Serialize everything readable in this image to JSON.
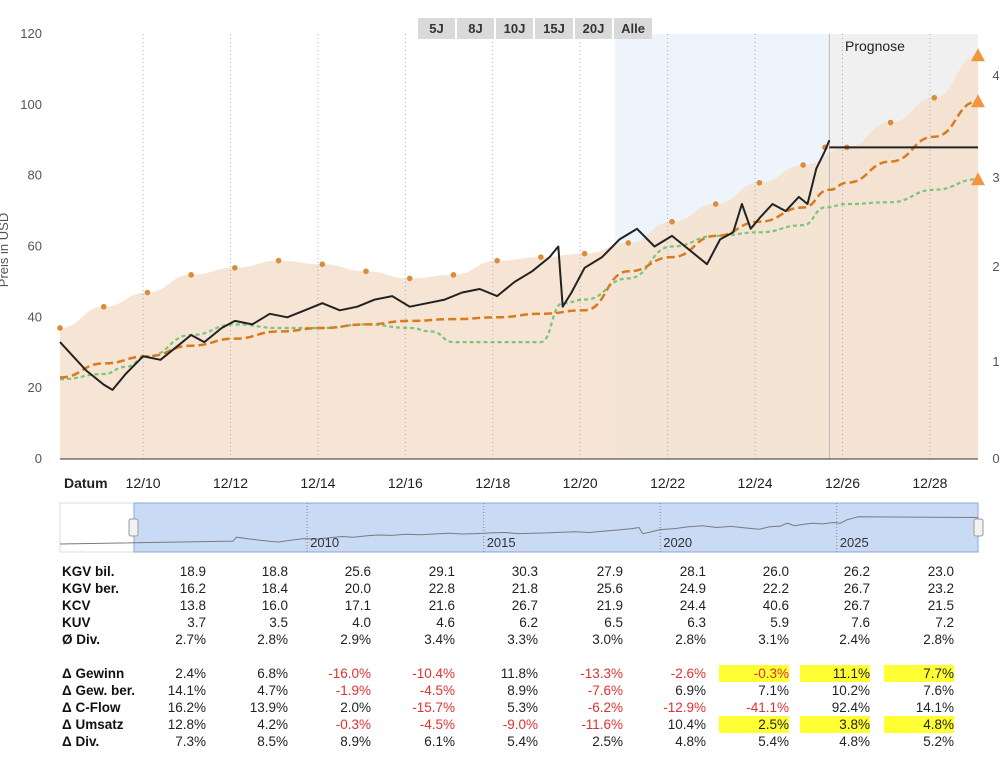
{
  "range_buttons": [
    "5J",
    "8J",
    "10J",
    "15J",
    "20J",
    "Alle"
  ],
  "chart_data": {
    "type": "line",
    "ylabel": "Preis in USD",
    "xlabel": "Datum",
    "ylim": [
      0,
      120
    ],
    "yticks": [
      0,
      20,
      40,
      60,
      80,
      100,
      120
    ],
    "y2_ticks_visible": [
      "4",
      "3",
      "2",
      "1",
      "0"
    ],
    "x_tick_labels": [
      "12/10",
      "12/12",
      "12/14",
      "12/16",
      "12/18",
      "12/20",
      "12/22",
      "12/24",
      "12/26",
      "12/28"
    ],
    "forecast_label": "Prognose",
    "colors": {
      "price": "#222222",
      "fair_value_band": "#f5e0cc",
      "fair_value_points": "#d98c3a",
      "earnings_line": "#d97a1f",
      "cashflow_line": "#7cc47c",
      "forecast_bg": "#f0f0f0",
      "recent_bg": "#eef4fb"
    },
    "series": [
      {
        "key": "band",
        "points": [
          [
            2008.0,
            37
          ],
          [
            2009.0,
            43
          ],
          [
            2010.0,
            47
          ],
          [
            2011.0,
            52
          ],
          [
            2012.0,
            54
          ],
          [
            2013.0,
            56
          ],
          [
            2014.0,
            55
          ],
          [
            2015.0,
            53
          ],
          [
            2016.0,
            51
          ],
          [
            2017.0,
            52
          ],
          [
            2018.0,
            56
          ],
          [
            2019.0,
            57
          ],
          [
            2020.0,
            58
          ],
          [
            2021.0,
            61
          ],
          [
            2022.0,
            67
          ],
          [
            2023.0,
            72
          ],
          [
            2024.0,
            78
          ],
          [
            2025.0,
            83
          ],
          [
            2026.0,
            88
          ],
          [
            2027.0,
            95
          ],
          [
            2028.0,
            102
          ],
          [
            2029.0,
            114
          ]
        ]
      },
      {
        "key": "earnings",
        "points": [
          [
            2008.0,
            23
          ],
          [
            2009.0,
            27
          ],
          [
            2010.0,
            29
          ],
          [
            2011.0,
            32
          ],
          [
            2012.0,
            34
          ],
          [
            2013.0,
            36
          ],
          [
            2014.0,
            37
          ],
          [
            2015.0,
            38
          ],
          [
            2016.0,
            39
          ],
          [
            2017.0,
            39.5
          ],
          [
            2018.0,
            40
          ],
          [
            2019.0,
            41
          ],
          [
            2020.0,
            42
          ],
          [
            2021.0,
            53
          ],
          [
            2022.0,
            57
          ],
          [
            2023.0,
            63
          ],
          [
            2024.0,
            67
          ],
          [
            2025.0,
            71
          ],
          [
            2025.6,
            76
          ],
          [
            2026.0,
            78
          ],
          [
            2027.0,
            84
          ],
          [
            2028.0,
            91
          ],
          [
            2029.0,
            101
          ]
        ]
      },
      {
        "key": "cashflow",
        "points": [
          [
            2008.0,
            22.5
          ],
          [
            2009.0,
            24
          ],
          [
            2009.5,
            26
          ],
          [
            2010.0,
            29
          ],
          [
            2011.0,
            35
          ],
          [
            2012.0,
            38
          ],
          [
            2013.0,
            37
          ],
          [
            2014.0,
            37
          ],
          [
            2015.0,
            38
          ],
          [
            2016.0,
            37
          ],
          [
            2016.5,
            36
          ],
          [
            2017.0,
            33
          ],
          [
            2018.0,
            33
          ],
          [
            2019.0,
            33
          ],
          [
            2019.5,
            44
          ],
          [
            2020.0,
            45
          ],
          [
            2021.0,
            51
          ],
          [
            2022.0,
            60
          ],
          [
            2023.0,
            63
          ],
          [
            2024.0,
            64
          ],
          [
            2025.0,
            66
          ],
          [
            2025.5,
            71
          ],
          [
            2026.0,
            72
          ],
          [
            2027.0,
            72.5
          ],
          [
            2028.0,
            76
          ],
          [
            2029.0,
            79
          ]
        ]
      },
      {
        "key": "price",
        "points": [
          [
            2008.0,
            33
          ],
          [
            2008.3,
            29
          ],
          [
            2008.6,
            25
          ],
          [
            2009.0,
            21
          ],
          [
            2009.2,
            19.5
          ],
          [
            2009.5,
            24
          ],
          [
            2009.9,
            29
          ],
          [
            2010.3,
            28
          ],
          [
            2010.7,
            32
          ],
          [
            2011.0,
            35
          ],
          [
            2011.3,
            33
          ],
          [
            2011.7,
            37
          ],
          [
            2012.0,
            39
          ],
          [
            2012.4,
            38
          ],
          [
            2012.8,
            41
          ],
          [
            2013.2,
            40
          ],
          [
            2013.6,
            42
          ],
          [
            2014.0,
            44
          ],
          [
            2014.4,
            42
          ],
          [
            2014.8,
            43
          ],
          [
            2015.2,
            45
          ],
          [
            2015.6,
            46
          ],
          [
            2016.0,
            43
          ],
          [
            2016.4,
            44
          ],
          [
            2016.8,
            45
          ],
          [
            2017.2,
            47
          ],
          [
            2017.6,
            48
          ],
          [
            2018.0,
            46
          ],
          [
            2018.4,
            50
          ],
          [
            2018.8,
            53
          ],
          [
            2019.2,
            57
          ],
          [
            2019.4,
            60
          ],
          [
            2019.5,
            43
          ],
          [
            2019.7,
            47
          ],
          [
            2020.0,
            54
          ],
          [
            2020.4,
            57
          ],
          [
            2020.8,
            62
          ],
          [
            2021.2,
            65
          ],
          [
            2021.6,
            60
          ],
          [
            2022.0,
            63
          ],
          [
            2022.4,
            59
          ],
          [
            2022.8,
            55
          ],
          [
            2023.1,
            62
          ],
          [
            2023.4,
            64
          ],
          [
            2023.6,
            72
          ],
          [
            2023.8,
            65
          ],
          [
            2024.0,
            68
          ],
          [
            2024.3,
            72
          ],
          [
            2024.6,
            70
          ],
          [
            2024.9,
            74
          ],
          [
            2025.1,
            72
          ],
          [
            2025.3,
            82
          ],
          [
            2025.5,
            87
          ],
          [
            2025.6,
            90
          ]
        ]
      },
      {
        "key": "price_forecast",
        "points": [
          [
            2025.6,
            88
          ],
          [
            2029.0,
            88
          ]
        ]
      }
    ],
    "fair_value_markers": [
      [
        2008.0,
        37
      ],
      [
        2009.0,
        43
      ],
      [
        2010.0,
        47
      ],
      [
        2011.0,
        52
      ],
      [
        2012.0,
        54
      ],
      [
        2013.0,
        56
      ],
      [
        2014.0,
        55
      ],
      [
        2015.0,
        53
      ],
      [
        2016.0,
        51
      ],
      [
        2017.0,
        52
      ],
      [
        2018.0,
        56
      ],
      [
        2019.0,
        57
      ],
      [
        2020.0,
        58
      ],
      [
        2021.0,
        61
      ],
      [
        2022.0,
        67
      ],
      [
        2023.0,
        72
      ],
      [
        2024.0,
        78
      ],
      [
        2025.0,
        83
      ],
      [
        2025.5,
        88
      ],
      [
        2026.0,
        88
      ],
      [
        2027.0,
        95
      ],
      [
        2028.0,
        102
      ]
    ],
    "end_markers": [
      [
        2029.0,
        114
      ],
      [
        2029.0,
        101
      ],
      [
        2029.0,
        79
      ]
    ],
    "navigator": {
      "labels": [
        "2010",
        "2015",
        "2020",
        "2025"
      ]
    }
  },
  "table": {
    "group1": [
      {
        "label": "KGV bil.",
        "values": [
          "18.9",
          "18.8",
          "25.6",
          "29.1",
          "30.3",
          "27.9",
          "28.1",
          "26.0",
          "26.2",
          "23.0"
        ]
      },
      {
        "label": "KGV ber.",
        "values": [
          "16.2",
          "18.4",
          "20.0",
          "22.8",
          "21.8",
          "25.6",
          "24.9",
          "22.2",
          "26.7",
          "23.2"
        ]
      },
      {
        "label": "KCV",
        "values": [
          "13.8",
          "16.0",
          "17.1",
          "21.6",
          "26.7",
          "21.9",
          "24.4",
          "40.6",
          "26.7",
          "21.5"
        ]
      },
      {
        "label": "KUV",
        "values": [
          "3.7",
          "3.5",
          "4.0",
          "4.6",
          "6.2",
          "6.5",
          "6.3",
          "5.9",
          "7.6",
          "7.2"
        ]
      },
      {
        "label": "Ø Div.",
        "values": [
          "2.7%",
          "2.8%",
          "2.9%",
          "3.4%",
          "3.3%",
          "3.0%",
          "2.8%",
          "3.1%",
          "2.4%",
          "2.8%"
        ]
      }
    ],
    "group2": [
      {
        "label": "Δ Gewinn",
        "values": [
          "2.4%",
          "6.8%",
          "-16.0%",
          "-10.4%",
          "11.8%",
          "-13.3%",
          "-2.6%",
          "-0.3%",
          "11.1%",
          "7.7%"
        ],
        "highlight": [
          7,
          8,
          9
        ]
      },
      {
        "label": "Δ Gew. ber.",
        "values": [
          "14.1%",
          "4.7%",
          "-1.9%",
          "-4.5%",
          "8.9%",
          "-7.6%",
          "6.9%",
          "7.1%",
          "10.2%",
          "7.6%"
        ],
        "highlight": []
      },
      {
        "label": "Δ C-Flow",
        "values": [
          "16.2%",
          "13.9%",
          "2.0%",
          "-15.7%",
          "5.3%",
          "-6.2%",
          "-12.9%",
          "-41.1%",
          "92.4%",
          "14.1%"
        ],
        "highlight": []
      },
      {
        "label": "Δ Umsatz",
        "values": [
          "12.8%",
          "4.2%",
          "-0.3%",
          "-4.5%",
          "-9.0%",
          "-11.6%",
          "10.4%",
          "2.5%",
          "3.8%",
          "4.8%"
        ],
        "highlight": [
          7,
          8,
          9
        ]
      },
      {
        "label": "Δ Div.",
        "values": [
          "7.3%",
          "8.5%",
          "8.9%",
          "6.1%",
          "5.4%",
          "2.5%",
          "4.8%",
          "5.4%",
          "4.8%",
          "5.2%"
        ],
        "highlight": []
      }
    ]
  }
}
